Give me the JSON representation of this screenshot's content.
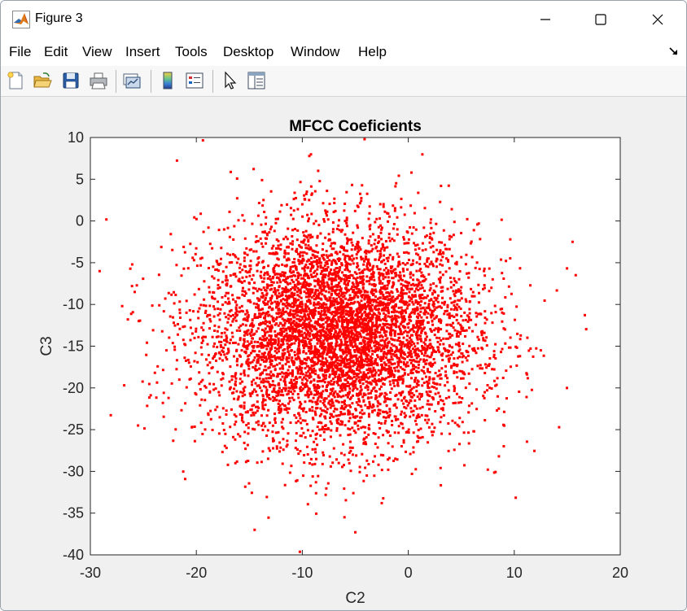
{
  "window": {
    "title": "Figure 3"
  },
  "menu": {
    "items": [
      "File",
      "Edit",
      "View",
      "Insert",
      "Tools",
      "Desktop",
      "Window",
      "Help"
    ]
  },
  "toolbar": {
    "icons": [
      "new-figure-icon",
      "open-file-icon",
      "save-icon",
      "print-icon",
      "link-plot-icon",
      "insert-colorbar-icon",
      "insert-legend-icon",
      "edit-plot-cursor-icon",
      "property-inspector-icon"
    ]
  },
  "colors": {
    "marker": "#ff0000",
    "axes_background": "#ffffff",
    "figure_background": "#f0f0f0"
  },
  "chart_data": {
    "type": "scatter",
    "title": "MFCC Coeficients",
    "xlabel": "C2",
    "ylabel": "C3",
    "xlim": [
      -30,
      20
    ],
    "ylim": [
      -40,
      10
    ],
    "xticks": [
      -30,
      -20,
      -10,
      0,
      10,
      20
    ],
    "yticks": [
      -40,
      -35,
      -30,
      -25,
      -20,
      -15,
      -10,
      -5,
      0,
      5,
      10
    ],
    "grid": false,
    "marker": "square",
    "series": [
      {
        "points_description_count": 6000,
        "center": [
          -6.5,
          -13.5
        ],
        "spread": [
          6.5,
          6.5
        ],
        "extremes": [
          [
            -27,
            -10.2
          ],
          [
            15.5,
            -2.5
          ],
          [
            15.8,
            -6.5
          ],
          [
            -8.5,
            6.0
          ],
          [
            0.3,
            5.8
          ],
          [
            -5,
            -37.3
          ],
          [
            -14.5,
            -37.0
          ],
          [
            12.5,
            -15.5
          ],
          [
            -25.5,
            -24.5
          ],
          [
            7.5,
            -29.8
          ]
        ]
      }
    ]
  }
}
